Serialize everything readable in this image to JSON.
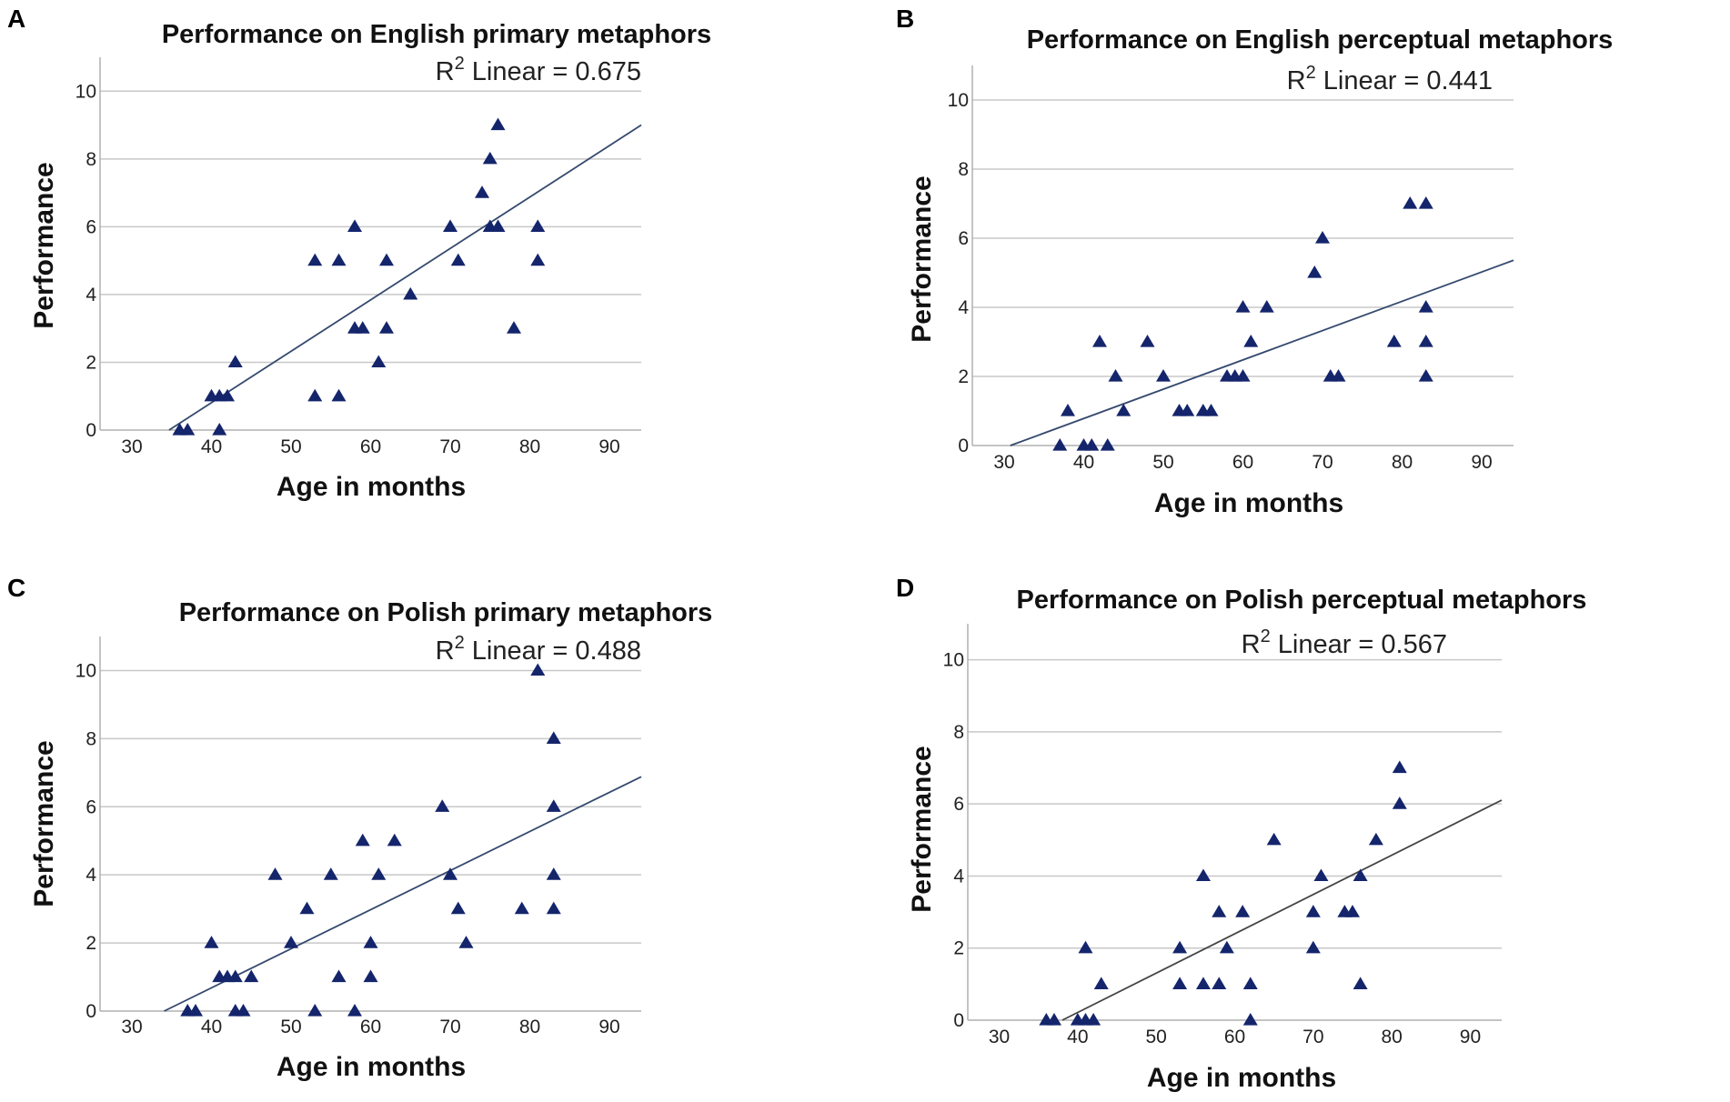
{
  "chart_data": [
    {
      "type": "scatter",
      "panel_letter": "A",
      "title": "Performance on English primary metaphors",
      "xlabel": "Age in months",
      "ylabel": "Performance",
      "xlim": [
        26,
        94
      ],
      "ylim": [
        0,
        11
      ],
      "xticks": [
        "30",
        "40",
        "50",
        "60",
        "70",
        "80",
        "90"
      ],
      "yticks": [
        "0",
        "2",
        "4",
        "6",
        "8",
        "10"
      ],
      "r2_label": "R",
      "r2_sup": "2",
      "r2_text": " Linear = 0.675",
      "fit": {
        "slope": 0.1517,
        "intercept": -5.26
      },
      "line_color": "#34496e",
      "marker_color": "#14256c",
      "points": [
        [
          36,
          0
        ],
        [
          37,
          0
        ],
        [
          41,
          0
        ],
        [
          40,
          1
        ],
        [
          41,
          1
        ],
        [
          42,
          1
        ],
        [
          43,
          2
        ],
        [
          53,
          1
        ],
        [
          56,
          1
        ],
        [
          53,
          5
        ],
        [
          56,
          5
        ],
        [
          58,
          6
        ],
        [
          58,
          3
        ],
        [
          59,
          3
        ],
        [
          62,
          3
        ],
        [
          62,
          5
        ],
        [
          61,
          2
        ],
        [
          65,
          4
        ],
        [
          70,
          6
        ],
        [
          71,
          5
        ],
        [
          74,
          7
        ],
        [
          75,
          8
        ],
        [
          75,
          6
        ],
        [
          76,
          6
        ],
        [
          76,
          9
        ],
        [
          78,
          3
        ],
        [
          81,
          6
        ],
        [
          81,
          5
        ]
      ]
    },
    {
      "type": "scatter",
      "panel_letter": "B",
      "title": "Performance on English perceptual metaphors",
      "xlabel": "Age in months",
      "ylabel": "Performance",
      "xlim": [
        26,
        94
      ],
      "ylim": [
        0,
        11
      ],
      "xticks": [
        "30",
        "40",
        "50",
        "60",
        "70",
        "80",
        "90"
      ],
      "yticks": [
        "0",
        "2",
        "4",
        "6",
        "8",
        "10"
      ],
      "r2_label": "R",
      "r2_sup": "2",
      "r2_text": " Linear = 0.441",
      "fit": {
        "slope": 0.0848,
        "intercept": -2.61
      },
      "line_color": "#34496e",
      "marker_color": "#14256c",
      "points": [
        [
          37,
          0
        ],
        [
          40,
          0
        ],
        [
          41,
          0
        ],
        [
          43,
          0
        ],
        [
          38,
          1
        ],
        [
          42,
          3
        ],
        [
          44,
          2
        ],
        [
          45,
          1
        ],
        [
          48,
          3
        ],
        [
          50,
          2
        ],
        [
          52,
          1
        ],
        [
          53,
          1
        ],
        [
          55,
          1
        ],
        [
          56,
          1
        ],
        [
          58,
          2
        ],
        [
          59,
          2
        ],
        [
          60,
          2
        ],
        [
          60,
          4
        ],
        [
          61,
          3
        ],
        [
          63,
          4
        ],
        [
          69,
          5
        ],
        [
          70,
          6
        ],
        [
          71,
          2
        ],
        [
          72,
          2
        ],
        [
          79,
          3
        ],
        [
          81,
          7
        ],
        [
          83,
          7
        ],
        [
          83,
          4
        ],
        [
          83,
          3
        ],
        [
          83,
          2
        ]
      ]
    },
    {
      "type": "scatter",
      "panel_letter": "C",
      "title": "Performance on Polish primary metaphors",
      "xlabel": "Age in months",
      "ylabel": "Performance",
      "xlim": [
        26,
        94
      ],
      "ylim": [
        0,
        11
      ],
      "xticks": [
        "30",
        "40",
        "50",
        "60",
        "70",
        "80",
        "90"
      ],
      "yticks": [
        "0",
        "2",
        "4",
        "6",
        "8",
        "10"
      ],
      "r2_label": "R",
      "r2_sup": "2",
      "r2_text": " Linear = 0.488",
      "fit": {
        "slope": 0.1148,
        "intercept": -3.91
      },
      "line_color": "#34496e",
      "marker_color": "#14256c",
      "points": [
        [
          37,
          0
        ],
        [
          38,
          0
        ],
        [
          40,
          2
        ],
        [
          41,
          1
        ],
        [
          42,
          1
        ],
        [
          43,
          1
        ],
        [
          43,
          0
        ],
        [
          44,
          0
        ],
        [
          45,
          1
        ],
        [
          48,
          4
        ],
        [
          50,
          2
        ],
        [
          52,
          3
        ],
        [
          53,
          0
        ],
        [
          55,
          4
        ],
        [
          56,
          1
        ],
        [
          58,
          0
        ],
        [
          59,
          5
        ],
        [
          60,
          2
        ],
        [
          60,
          1
        ],
        [
          61,
          4
        ],
        [
          63,
          5
        ],
        [
          69,
          6
        ],
        [
          70,
          4
        ],
        [
          71,
          3
        ],
        [
          72,
          2
        ],
        [
          79,
          3
        ],
        [
          81,
          10
        ],
        [
          83,
          8
        ],
        [
          83,
          6
        ],
        [
          83,
          4
        ],
        [
          83,
          3
        ]
      ]
    },
    {
      "type": "scatter",
      "panel_letter": "D",
      "title": "Performance on Polish perceptual metaphors",
      "xlabel": "Age in months",
      "ylabel": "Performance",
      "xlim": [
        26,
        94
      ],
      "ylim": [
        0,
        11
      ],
      "xticks": [
        "30",
        "40",
        "50",
        "60",
        "70",
        "80",
        "90"
      ],
      "yticks": [
        "0",
        "2",
        "4",
        "6",
        "8",
        "10"
      ],
      "r2_label": "R",
      "r2_sup": "2",
      "r2_text": " Linear = 0.567",
      "fit": {
        "slope": 0.1091,
        "intercept": -4.15
      },
      "line_color": "#444444",
      "marker_color": "#14256c",
      "points": [
        [
          36,
          0
        ],
        [
          37,
          0
        ],
        [
          40,
          0
        ],
        [
          41,
          0
        ],
        [
          42,
          0
        ],
        [
          41,
          2
        ],
        [
          43,
          1
        ],
        [
          53,
          2
        ],
        [
          53,
          1
        ],
        [
          56,
          1
        ],
        [
          56,
          4
        ],
        [
          58,
          3
        ],
        [
          58,
          1
        ],
        [
          59,
          2
        ],
        [
          61,
          3
        ],
        [
          62,
          1
        ],
        [
          62,
          0
        ],
        [
          65,
          5
        ],
        [
          70,
          3
        ],
        [
          70,
          2
        ],
        [
          71,
          4
        ],
        [
          74,
          3
        ],
        [
          75,
          3
        ],
        [
          76,
          4
        ],
        [
          76,
          1
        ],
        [
          78,
          5
        ],
        [
          81,
          7
        ],
        [
          81,
          6
        ]
      ]
    }
  ]
}
